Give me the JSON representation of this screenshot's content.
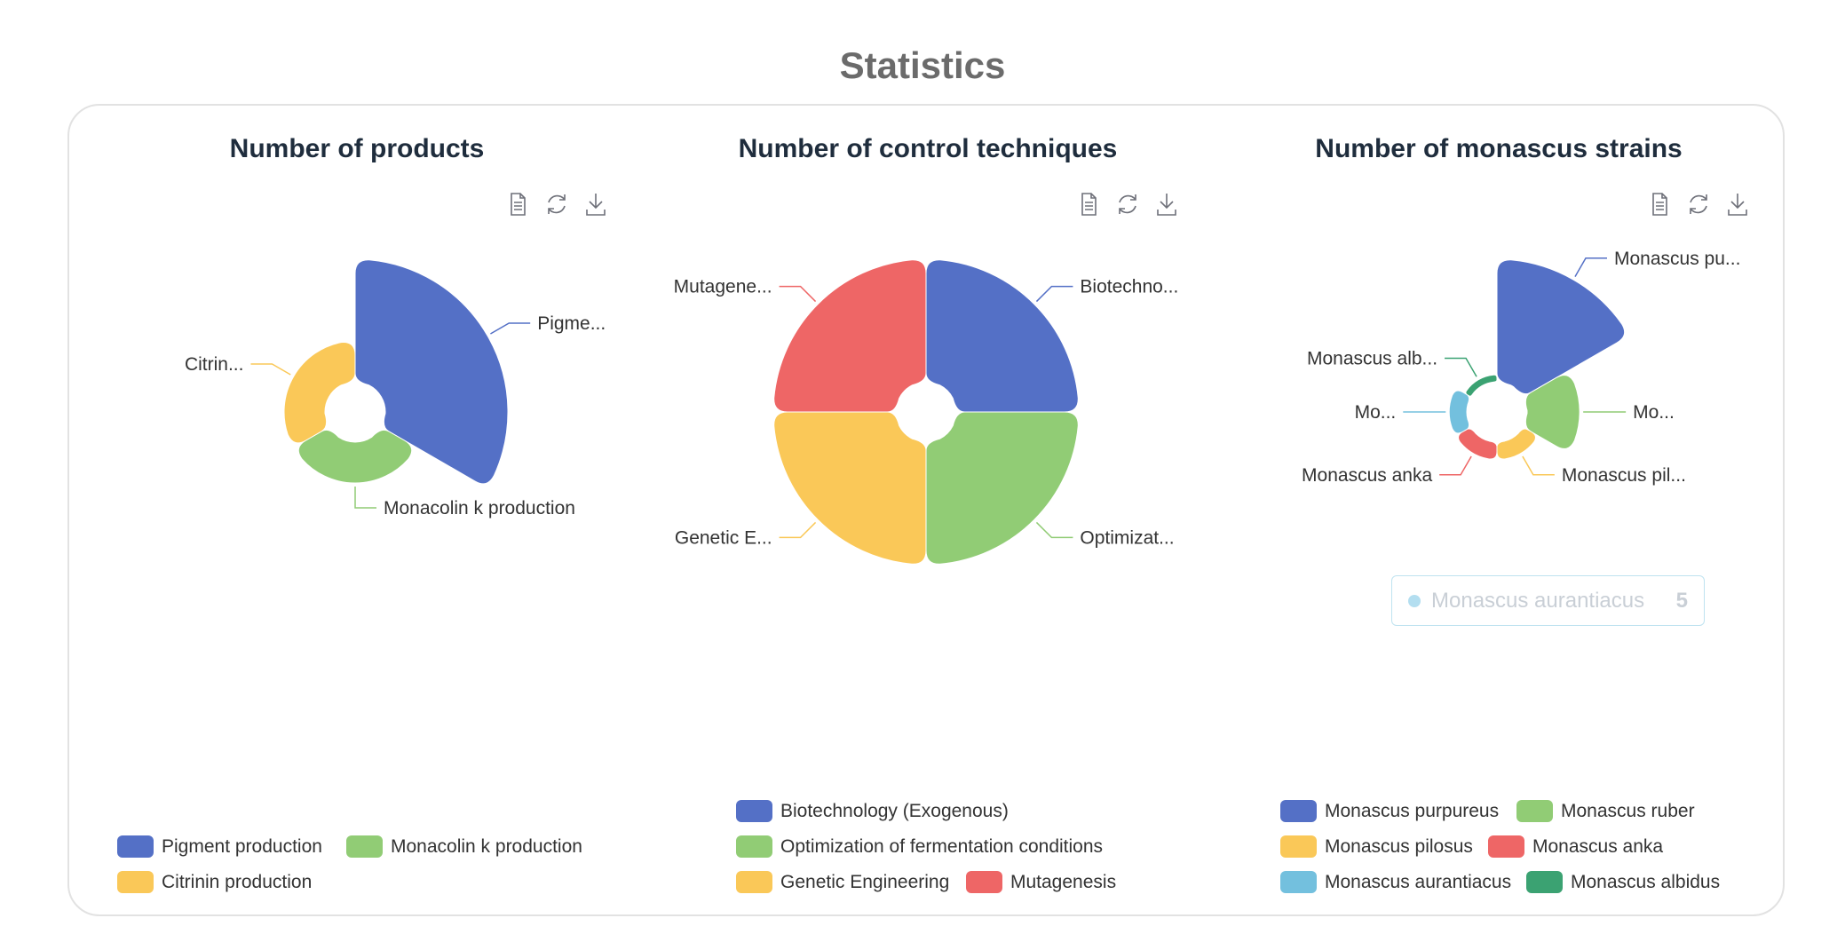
{
  "page_title": "Statistics",
  "colors": {
    "blue": "#5470c6",
    "green": "#91cc75",
    "yellow": "#fac858",
    "red": "#ee6666",
    "cyan": "#73c0de",
    "teal": "#3ba272"
  },
  "toolbox_icons": [
    "data-view-icon",
    "restore-icon",
    "save-image-icon"
  ],
  "tooltip": {
    "series": "Monascus aurantiacus",
    "value": "5"
  },
  "chart_data": [
    {
      "type": "pie",
      "rose_type": "radius",
      "title": "Number of products",
      "slices": [
        {
          "name": "Pigment production",
          "value": 60,
          "color": "#5470c6",
          "label": "Pigme..."
        },
        {
          "name": "Monacolin k production",
          "value": 20,
          "color": "#91cc75",
          "label": "Monacolin k production"
        },
        {
          "name": "Citrinin production",
          "value": 20,
          "color": "#fac858",
          "label": "Citrin..."
        }
      ],
      "legend": [
        "Pigment production",
        "Monacolin k production",
        "Citrinin production"
      ],
      "legend_position": "bottom"
    },
    {
      "type": "pie",
      "rose_type": "radius",
      "title": "Number of control techniques",
      "slices": [
        {
          "name": "Biotechnology (Exogenous)",
          "value": 25,
          "color": "#5470c6",
          "label": "Biotechno..."
        },
        {
          "name": "Optimization of fermentation conditions",
          "value": 25,
          "color": "#91cc75",
          "label": "Optimizat..."
        },
        {
          "name": "Genetic Engineering",
          "value": 25,
          "color": "#fac858",
          "label": "Genetic E..."
        },
        {
          "name": "Mutagenesis",
          "value": 25,
          "color": "#ee6666",
          "label": "Mutagene..."
        }
      ],
      "legend": [
        "Biotechnology (Exogenous)",
        "Optimization of fermentation conditions",
        "Genetic Engineering",
        "Mutagenesis"
      ],
      "legend_position": "bottom"
    },
    {
      "type": "pie",
      "rose_type": "radius",
      "title": "Number of monascus strains",
      "slices": [
        {
          "name": "Monascus purpureus",
          "value": 35,
          "color": "#5470c6",
          "label": "Monascus pu..."
        },
        {
          "name": "Monascus ruber",
          "value": 15,
          "color": "#91cc75",
          "label": "Mo..."
        },
        {
          "name": "Monascus pilosus",
          "value": 5,
          "color": "#fac858",
          "label": "Monascus pil..."
        },
        {
          "name": "Monascus anka",
          "value": 5,
          "color": "#ee6666",
          "label": "Monascus anka"
        },
        {
          "name": "Monascus aurantiacus",
          "value": 5,
          "color": "#73c0de",
          "label": "Mo..."
        },
        {
          "name": "Monascus albidus",
          "value": 2,
          "color": "#3ba272",
          "label": "Monascus alb..."
        }
      ],
      "legend": [
        "Monascus purpureus",
        "Monascus ruber",
        "Monascus pilosus",
        "Monascus anka",
        "Monascus aurantiacus",
        "Monascus albidus"
      ],
      "legend_position": "bottom"
    }
  ]
}
